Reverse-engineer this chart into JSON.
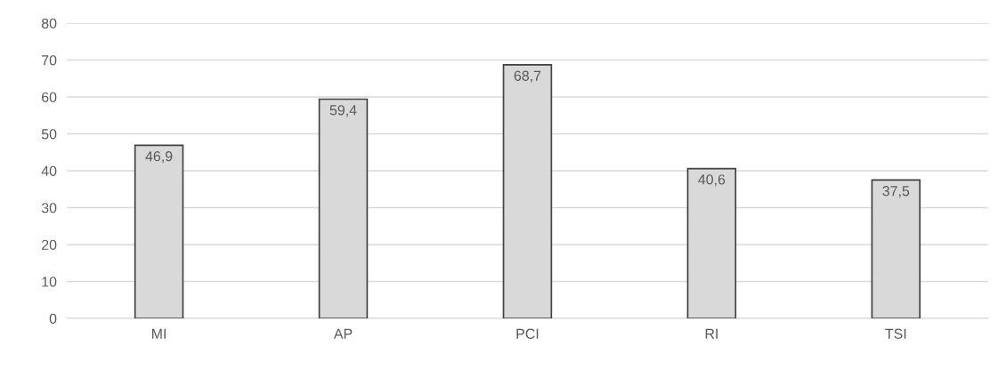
{
  "chart_data": {
    "type": "bar",
    "categories": [
      "MI",
      "AP",
      "PCI",
      "RI",
      "TSI"
    ],
    "values": [
      46.9,
      59.4,
      68.7,
      40.6,
      37.5
    ],
    "value_labels": [
      "46,9",
      "59,4",
      "68,7",
      "40,6",
      "37,5"
    ],
    "color": "#d9d9d9",
    "ylim": [
      0,
      80
    ],
    "yticks": [
      0,
      10,
      20,
      30,
      40,
      50,
      60,
      70,
      80
    ],
    "grid": "y",
    "legend": false
  }
}
